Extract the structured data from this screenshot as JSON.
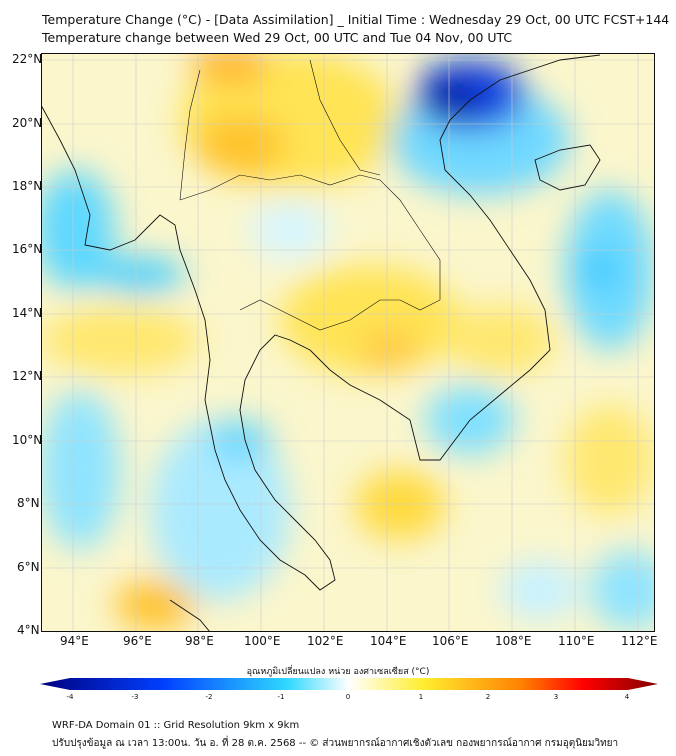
{
  "title": {
    "line1": "Temperature Change (°C) - [Data Assimilation] _ Initial Time : Wednesday 29 Oct, 00 UTC FCST+144",
    "line2": "Temperature change between Wed 29 Oct, 00 UTC and Tue 04 Nov, 00 UTC"
  },
  "map": {
    "lat_labels": [
      "22°N",
      "20°N",
      "18°N",
      "16°N",
      "14°N",
      "12°N",
      "10°N",
      "8°N",
      "6°N",
      "4°N"
    ],
    "lon_labels": [
      "94°E",
      "96°E",
      "98°E",
      "100°E",
      "102°E",
      "104°E",
      "106°E",
      "108°E",
      "110°E",
      "112°E"
    ]
  },
  "colorbar": {
    "label": "อุณหภูมิเปลี่ยนแปลง หน่วย องศาเซลเซียส (°C)",
    "ticks": [
      "-4",
      "-3",
      "-2",
      "-1",
      "0",
      "1",
      "2",
      "3",
      "4"
    ],
    "range": [
      -4,
      4
    ],
    "colors": [
      "#00007f",
      "#0040ff",
      "#30d0ff",
      "#ffffff",
      "#ffe000",
      "#ff0000",
      "#7f0000"
    ]
  },
  "footer": {
    "line1": "WRF-DA Domain 01 :: Grid Resolution 9km x 9km",
    "line2": "ปรับปรุงข้อมูล ณ เวลา 13:00น. วัน อ. ที่ 28 ต.ค. 2568 -- © ส่วนพยากรณ์อากาศเชิงตัวเลข กองพยากรณ์อากาศ กรมอุตุนิยมวิทยา"
  }
}
